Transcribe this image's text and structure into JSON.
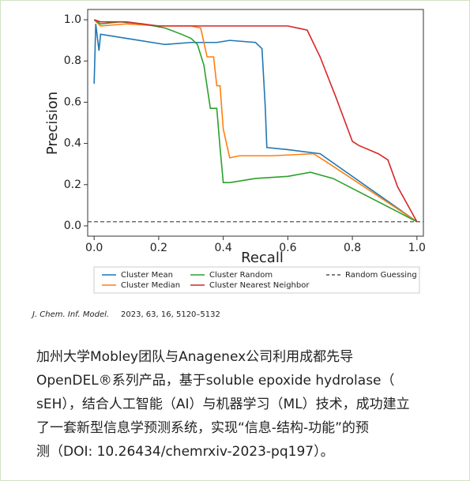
{
  "chart_data": {
    "type": "line",
    "xlabel": "Recall",
    "ylabel": "Precision",
    "xlim": [
      -0.02,
      1.02
    ],
    "ylim": [
      -0.05,
      1.05
    ],
    "xticks": [
      {
        "value": 0,
        "label": "0.0"
      },
      0.2,
      0.4,
      0.6,
      0.8,
      {
        "value": 1,
        "label": "1.0"
      }
    ],
    "yticks": [
      {
        "value": 0,
        "label": "0.0"
      },
      0.2,
      0.4,
      0.6,
      0.8,
      {
        "value": 1,
        "label": "1.0"
      }
    ],
    "series": [
      {
        "name": "Cluster Mean",
        "color": "#1f77b4",
        "dash": false,
        "x": [
          0,
          0.005,
          0.015,
          0.02,
          0.1,
          0.22,
          0.3,
          0.38,
          0.42,
          0.5,
          0.52,
          0.53,
          0.535,
          0.6,
          0.7,
          1.0
        ],
        "values": [
          0.69,
          0.98,
          0.85,
          0.93,
          0.91,
          0.88,
          0.89,
          0.89,
          0.9,
          0.89,
          0.86,
          0.58,
          0.38,
          0.37,
          0.35,
          0.02
        ]
      },
      {
        "name": "Cluster Median",
        "color": "#ff7f0e",
        "dash": false,
        "x": [
          0,
          0.02,
          0.1,
          0.2,
          0.3,
          0.33,
          0.35,
          0.37,
          0.38,
          0.39,
          0.4,
          0.42,
          0.45,
          0.55,
          0.68,
          0.72,
          1.0
        ],
        "values": [
          1.0,
          0.97,
          0.98,
          0.97,
          0.97,
          0.96,
          0.82,
          0.82,
          0.68,
          0.68,
          0.47,
          0.33,
          0.34,
          0.34,
          0.35,
          0.31,
          0.02
        ]
      },
      {
        "name": "Cluster Random",
        "color": "#2ca02c",
        "dash": false,
        "x": [
          0,
          0.02,
          0.08,
          0.15,
          0.22,
          0.27,
          0.3,
          0.32,
          0.34,
          0.36,
          0.38,
          0.39,
          0.4,
          0.42,
          0.5,
          0.6,
          0.67,
          0.74,
          1.0
        ],
        "values": [
          1.0,
          0.98,
          0.99,
          0.98,
          0.96,
          0.93,
          0.91,
          0.88,
          0.78,
          0.57,
          0.57,
          0.38,
          0.21,
          0.21,
          0.23,
          0.24,
          0.26,
          0.23,
          0.02
        ]
      },
      {
        "name": "Cluster Nearest Neighbor",
        "color": "#d62728",
        "dash": false,
        "x": [
          0,
          0.02,
          0.1,
          0.2,
          0.3,
          0.5,
          0.6,
          0.66,
          0.7,
          0.75,
          0.8,
          0.82,
          0.88,
          0.91,
          0.94,
          1.0
        ],
        "values": [
          1.0,
          0.99,
          0.99,
          0.97,
          0.97,
          0.97,
          0.97,
          0.95,
          0.82,
          0.62,
          0.41,
          0.39,
          0.35,
          0.32,
          0.19,
          0.02
        ]
      },
      {
        "name": "Random Guessing",
        "color": "#555555",
        "dash": true,
        "x": [
          -0.02,
          1.02
        ],
        "values": [
          0.02,
          0.02
        ]
      }
    ]
  },
  "citation_journal": "J. Chem. Inf. Model.",
  "citation_details": "2023, 63, 16, 5120–5132",
  "paragraph": [
    "加州大学Mobley团队与Anagenex公司利用成都先导",
    "OpenDEL®系列产品，基于soluble epoxide hydrolase（",
    "sEH），结合人工智能（AI）与机器学习（ML）技术，成功建立",
    "了一套新型信息学预测系统，实现“信息-结构-功能”的预",
    "测（DOI: 10.26434/chemrxiv-2023-pq197）。"
  ]
}
